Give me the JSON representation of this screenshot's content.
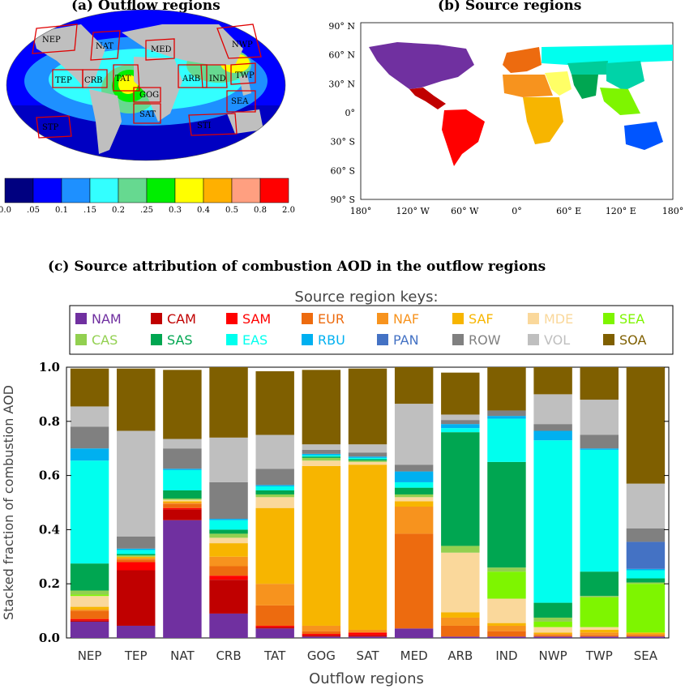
{
  "panel_a": {
    "title": "(a)  Outflow regions",
    "region_labels": [
      "NEP",
      "NAT",
      "MED",
      "NWP",
      "TEP",
      "CRB",
      "TAT",
      "ARB",
      "IND",
      "TWP",
      "GOG",
      "SAT",
      "SEA",
      "STP",
      "STI"
    ],
    "colorbar_ticks": [
      "0.0",
      ".05",
      "0.1",
      ".15",
      "0.2",
      ".25",
      "0.3",
      "0.4",
      "0.5",
      "0.8",
      "2.0"
    ],
    "colorbar_colors": [
      "#000080",
      "#0000ff",
      "#1e90ff",
      "#33ffff",
      "#66d990",
      "#00ee00",
      "#ffff00",
      "#ffb000",
      "#ff9f80",
      "#ff0000"
    ]
  },
  "panel_b": {
    "title": "(b)  Source regions",
    "y_ticks": [
      "90° N",
      "60° N",
      "30° N",
      "0°",
      "30° S",
      "60° S",
      "90° S"
    ],
    "x_ticks": [
      "180°",
      "120° W",
      "60° W",
      "0°",
      "60° E",
      "120° E",
      "180°"
    ]
  },
  "panel_c": {
    "title": "(c)  Source attribution of combustion AOD in the outflow regions",
    "legend_title": "Source region keys:"
  },
  "chart_data": {
    "type": "bar",
    "stacked": true,
    "title": "(c)  Source attribution of combustion AOD in the outflow regions",
    "xlabel": "Outflow regions",
    "ylabel": "Stacked fraction of combustion AOD",
    "ylim": [
      0,
      1
    ],
    "yticks": [
      "0.0",
      "0.2",
      "0.4",
      "0.6",
      "0.8",
      "1.0"
    ],
    "grid": false,
    "legend_position": "top",
    "categories": [
      "NEP",
      "TEP",
      "NAT",
      "CRB",
      "TAT",
      "GOG",
      "SAT",
      "MED",
      "ARB",
      "IND",
      "NWP",
      "TWP",
      "SEA"
    ],
    "series": [
      {
        "name": "NAM",
        "color": "#7030a0",
        "values": [
          0.06,
          0.045,
          0.435,
          0.09,
          0.035,
          0.005,
          0.005,
          0.035,
          0.005,
          0.005,
          0.005,
          0.005,
          0.005
        ]
      },
      {
        "name": "CAM",
        "color": "#c00000",
        "values": [
          0.005,
          0.205,
          0.04,
          0.125,
          0.005,
          0.005,
          0.005,
          0.0,
          0.0,
          0.0,
          0.0,
          0.0,
          0.0
        ]
      },
      {
        "name": "SAM",
        "color": "#ff0000",
        "values": [
          0.005,
          0.03,
          0.005,
          0.015,
          0.005,
          0.005,
          0.01,
          0.0,
          0.0,
          0.0,
          0.0,
          0.0,
          0.0
        ]
      },
      {
        "name": "EUR",
        "color": "#ed6b0f",
        "values": [
          0.03,
          0.01,
          0.015,
          0.035,
          0.075,
          0.01,
          0.0,
          0.35,
          0.04,
          0.02,
          0.005,
          0.005,
          0.005
        ]
      },
      {
        "name": "NAF",
        "color": "#f7931e",
        "values": [
          0.005,
          0.005,
          0.005,
          0.035,
          0.08,
          0.02,
          0.01,
          0.1,
          0.03,
          0.02,
          0.005,
          0.01,
          0.005
        ]
      },
      {
        "name": "SAF",
        "color": "#f7b500",
        "values": [
          0.01,
          0.005,
          0.005,
          0.05,
          0.28,
          0.59,
          0.61,
          0.02,
          0.02,
          0.01,
          0.005,
          0.01,
          0.005
        ]
      },
      {
        "name": "MDE",
        "color": "#fad89b",
        "values": [
          0.04,
          0.0,
          0.005,
          0.02,
          0.04,
          0.02,
          0.01,
          0.015,
          0.22,
          0.09,
          0.02,
          0.01,
          0.0
        ]
      },
      {
        "name": "SEA",
        "color": "#7ef500",
        "values": [
          0.005,
          0.0,
          0.0,
          0.0,
          0.0,
          0.0,
          0.0,
          0.0,
          0.0,
          0.1,
          0.02,
          0.11,
          0.18
        ]
      },
      {
        "name": "CAS",
        "color": "#92d050",
        "values": [
          0.015,
          0.005,
          0.005,
          0.015,
          0.01,
          0.01,
          0.005,
          0.01,
          0.025,
          0.015,
          0.015,
          0.005,
          0.005
        ]
      },
      {
        "name": "SAS",
        "color": "#00a651",
        "values": [
          0.1,
          0.005,
          0.03,
          0.015,
          0.015,
          0.005,
          0.005,
          0.025,
          0.42,
          0.39,
          0.055,
          0.09,
          0.015
        ]
      },
      {
        "name": "EAS",
        "color": "#00ffee",
        "values": [
          0.38,
          0.015,
          0.075,
          0.035,
          0.015,
          0.005,
          0.005,
          0.02,
          0.015,
          0.16,
          0.6,
          0.45,
          0.03
        ]
      },
      {
        "name": "RBU",
        "color": "#00b0f0",
        "values": [
          0.045,
          0.005,
          0.005,
          0.005,
          0.005,
          0.005,
          0.005,
          0.04,
          0.015,
          0.01,
          0.035,
          0.005,
          0.005
        ]
      },
      {
        "name": "PAN",
        "color": "#4472c4",
        "values": [
          0.0,
          0.0,
          0.0,
          0.0,
          0.0,
          0.0,
          0.0,
          0.0,
          0.0,
          0.0,
          0.0,
          0.0,
          0.1
        ]
      },
      {
        "name": "ROW",
        "color": "#808080",
        "values": [
          0.08,
          0.045,
          0.075,
          0.135,
          0.06,
          0.015,
          0.015,
          0.025,
          0.015,
          0.02,
          0.025,
          0.05,
          0.05
        ]
      },
      {
        "name": "VOL",
        "color": "#bfbfbf",
        "values": [
          0.075,
          0.39,
          0.035,
          0.165,
          0.125,
          0.02,
          0.03,
          0.225,
          0.02,
          0.0,
          0.11,
          0.13,
          0.165
        ]
      },
      {
        "name": "SOA",
        "color": "#7f5f00",
        "values": [
          0.14,
          0.23,
          0.255,
          0.26,
          0.235,
          0.275,
          0.28,
          0.135,
          0.155,
          0.16,
          0.1,
          0.12,
          0.43
        ]
      }
    ]
  }
}
